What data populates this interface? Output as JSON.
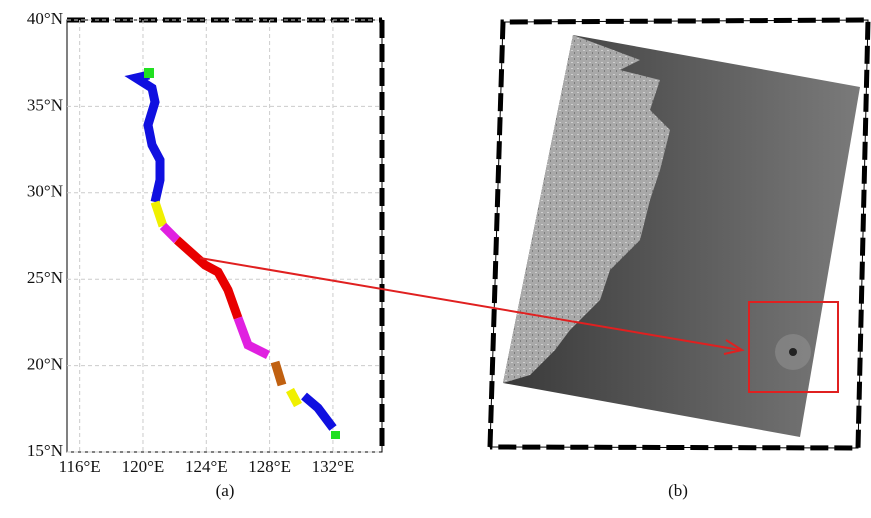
{
  "panel_a": {
    "lat_range": [
      15,
      40
    ],
    "lon_range": [
      115.2,
      135.1
    ],
    "lat_ticks": [
      {
        "value": 15,
        "label": "15°N"
      },
      {
        "value": 20,
        "label": "20°N"
      },
      {
        "value": 25,
        "label": "25°N"
      },
      {
        "value": 30,
        "label": "30°N"
      },
      {
        "value": 35,
        "label": "35°N"
      },
      {
        "value": 40,
        "label": "40°N"
      }
    ],
    "lon_ticks": [
      {
        "value": 116,
        "label": "116°E"
      },
      {
        "value": 120,
        "label": "120°E"
      },
      {
        "value": 124,
        "label": "124°E"
      },
      {
        "value": 128,
        "label": "128°E"
      },
      {
        "value": 132,
        "label": "132°E"
      }
    ],
    "caption": "(a)"
  },
  "panel_b": {
    "caption": "(b)"
  }
}
